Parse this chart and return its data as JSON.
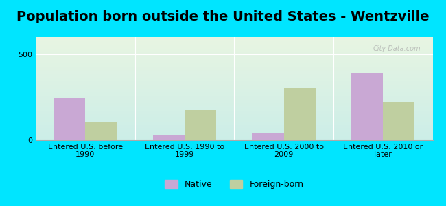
{
  "title": "Population born outside the United States - Wentzville",
  "categories": [
    "Entered U.S. before\n1990",
    "Entered U.S. 1990 to\n1999",
    "Entered U.S. 2000 to\n2009",
    "Entered U.S. 2010 or\nlater"
  ],
  "native_values": [
    250,
    30,
    40,
    390
  ],
  "foreign_values": [
    110,
    175,
    305,
    220
  ],
  "native_color": "#c9a8d4",
  "foreign_color": "#bfcfa0",
  "ylim": [
    0,
    600
  ],
  "yticks": [
    0,
    500
  ],
  "bar_width": 0.32,
  "background_outer": "#00e5ff",
  "bg_top": "#e8f5e2",
  "bg_bottom": "#cceee8",
  "legend_native": "Native",
  "legend_foreign": "Foreign-born",
  "title_fontsize": 14,
  "tick_fontsize": 8,
  "legend_fontsize": 9,
  "watermark": "City-Data.com"
}
